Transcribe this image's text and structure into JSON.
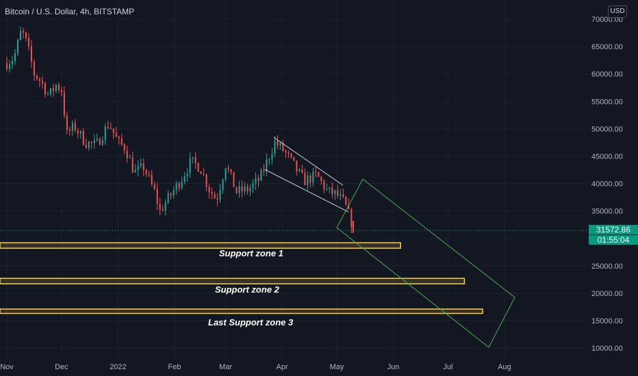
{
  "header": {
    "title": "Bitcoin / U.S. Dollar, 4h, BITSTAMP",
    "currency_button": "USD"
  },
  "price_tag": {
    "price": "31572.86",
    "countdown": "01:55:04"
  },
  "colors": {
    "background": "#131722",
    "up": "#26a69a",
    "down": "#ef5350",
    "zone_fill": "#ffcc4d",
    "channel": "#d1d4dc",
    "projection": "#4caf50",
    "axis_text": "#b2b5be"
  },
  "chart_data": {
    "type": "candlestick",
    "y_axis_ticks": [
      "70000.00",
      "65000.00",
      "60000.00",
      "55000.00",
      "50000.00",
      "45000.00",
      "40000.00",
      "35000.00",
      "30000.00",
      "25000.00",
      "20000.00",
      "15000.00",
      "10000.00"
    ],
    "x_axis_ticks": [
      "Nov",
      "Dec",
      "2022",
      "Feb",
      "Mar",
      "Apr",
      "May",
      "Jun",
      "Jul",
      "Aug"
    ],
    "ylim": [
      8000,
      72000
    ],
    "current_price": 31572.86,
    "price_path": [
      {
        "x": "2021-11-01",
        "y": 62000
      },
      {
        "x": "2021-11-05",
        "y": 63000
      },
      {
        "x": "2021-11-09",
        "y": 68000
      },
      {
        "x": "2021-11-12",
        "y": 65500
      },
      {
        "x": "2021-11-16",
        "y": 60000
      },
      {
        "x": "2021-11-20",
        "y": 58500
      },
      {
        "x": "2021-11-24",
        "y": 56000
      },
      {
        "x": "2021-11-28",
        "y": 58000
      },
      {
        "x": "2021-12-01",
        "y": 57000
      },
      {
        "x": "2021-12-04",
        "y": 49000
      },
      {
        "x": "2021-12-08",
        "y": 50500
      },
      {
        "x": "2021-12-14",
        "y": 47500
      },
      {
        "x": "2021-12-20",
        "y": 47000
      },
      {
        "x": "2021-12-27",
        "y": 51000
      },
      {
        "x": "2022-01-01",
        "y": 47500
      },
      {
        "x": "2022-01-05",
        "y": 46500
      },
      {
        "x": "2022-01-10",
        "y": 42000
      },
      {
        "x": "2022-01-15",
        "y": 43000
      },
      {
        "x": "2022-01-21",
        "y": 38500
      },
      {
        "x": "2022-01-24",
        "y": 35000
      },
      {
        "x": "2022-01-30",
        "y": 38000
      },
      {
        "x": "2022-02-05",
        "y": 41000
      },
      {
        "x": "2022-02-10",
        "y": 44000
      },
      {
        "x": "2022-02-15",
        "y": 43000
      },
      {
        "x": "2022-02-20",
        "y": 39000
      },
      {
        "x": "2022-02-24",
        "y": 37000
      },
      {
        "x": "2022-03-01",
        "y": 43500
      },
      {
        "x": "2022-03-07",
        "y": 38500
      },
      {
        "x": "2022-03-14",
        "y": 39000
      },
      {
        "x": "2022-03-20",
        "y": 41000
      },
      {
        "x": "2022-03-28",
        "y": 47500
      },
      {
        "x": "2022-04-02",
        "y": 46000
      },
      {
        "x": "2022-04-07",
        "y": 43500
      },
      {
        "x": "2022-04-13",
        "y": 40500
      },
      {
        "x": "2022-04-20",
        "y": 41500
      },
      {
        "x": "2022-04-26",
        "y": 38500
      },
      {
        "x": "2022-05-01",
        "y": 38000
      },
      {
        "x": "2022-05-05",
        "y": 36500
      },
      {
        "x": "2022-05-09",
        "y": 33000
      },
      {
        "x": "2022-05-10",
        "y": 31572.86
      }
    ],
    "support_zones": [
      {
        "label": "Support zone 1",
        "top": 29200,
        "bottom": 28200,
        "end": "2022-06-05"
      },
      {
        "label": "Support zone 2",
        "top": 22700,
        "bottom": 21700,
        "end": "2022-07-10"
      },
      {
        "label": "Last Support zone 3",
        "top": 17100,
        "bottom": 16300,
        "end": "2022-07-20"
      }
    ]
  }
}
